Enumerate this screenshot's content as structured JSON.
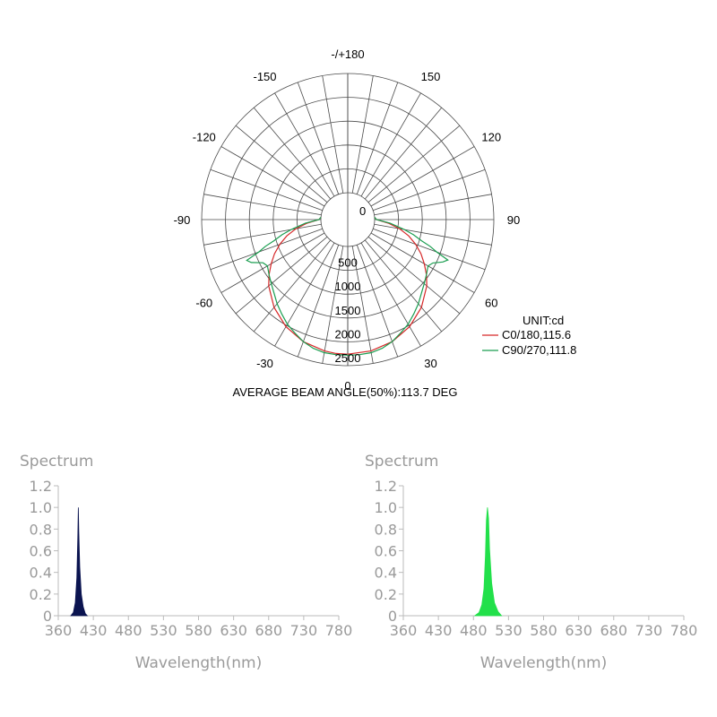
{
  "chart_data": [
    {
      "type": "polar",
      "unit": "UNIT:cd",
      "footer": "AVERAGE BEAM ANGLE(50%):113.7 DEG",
      "angle_labels": [
        {
          "angle": 180,
          "text": "-/+180"
        },
        {
          "angle": 150,
          "text": "150"
        },
        {
          "angle": 120,
          "text": "120"
        },
        {
          "angle": 90,
          "text": "90"
        },
        {
          "angle": 60,
          "text": "60"
        },
        {
          "angle": 30,
          "text": "30"
        },
        {
          "angle": 0,
          "text": "0"
        },
        {
          "angle": -30,
          "text": "-30"
        },
        {
          "angle": -60,
          "text": "-60"
        },
        {
          "angle": -90,
          "text": "-90"
        },
        {
          "angle": -120,
          "text": "-120"
        },
        {
          "angle": -150,
          "text": "-150"
        }
      ],
      "radial_ticks": [
        {
          "value": 0,
          "text": "0"
        },
        {
          "value": 500,
          "text": "500"
        },
        {
          "value": 1000,
          "text": "1000"
        },
        {
          "value": 1500,
          "text": "1500"
        },
        {
          "value": 2000,
          "text": "2000"
        },
        {
          "value": 2500,
          "text": "2500"
        }
      ],
      "rmax": 2500,
      "series": [
        {
          "name": "C0/180,115.6",
          "color": "#d62728",
          "points": [
            [
              0,
              2260
            ],
            [
              10,
              2235
            ],
            [
              20,
              2160
            ],
            [
              30,
              2030
            ],
            [
              40,
              1840
            ],
            [
              50,
              1600
            ],
            [
              55,
              1450
            ],
            [
              60,
              1290
            ],
            [
              65,
              1130
            ],
            [
              70,
              950
            ],
            [
              75,
              760
            ],
            [
              80,
              540
            ],
            [
              85,
              290
            ],
            [
              90,
              40
            ],
            [
              95,
              0
            ],
            [
              -5,
              2255
            ],
            [
              -10,
              2235
            ],
            [
              -20,
              2160
            ],
            [
              -30,
              2030
            ],
            [
              -40,
              1840
            ],
            [
              -50,
              1600
            ],
            [
              -55,
              1450
            ],
            [
              -60,
              1290
            ],
            [
              -65,
              1130
            ],
            [
              -70,
              950
            ],
            [
              -75,
              760
            ],
            [
              -80,
              540
            ],
            [
              -85,
              290
            ],
            [
              -90,
              40
            ],
            [
              -95,
              0
            ]
          ]
        },
        {
          "name": "C90/270,111.8",
          "color": "#1a9e50",
          "points": [
            [
              0,
              2280
            ],
            [
              5,
              2280
            ],
            [
              10,
              2270
            ],
            [
              15,
              2230
            ],
            [
              20,
              2160
            ],
            [
              25,
              2060
            ],
            [
              30,
              1970
            ],
            [
              35,
              1850
            ],
            [
              40,
              1740
            ],
            [
              45,
              1620
            ],
            [
              50,
              1530
            ],
            [
              55,
              1450
            ],
            [
              60,
              1380
            ],
            [
              63,
              1440
            ],
            [
              66,
              1620
            ],
            [
              68,
              1700
            ],
            [
              70,
              1420
            ],
            [
              72,
              1250
            ],
            [
              74,
              1050
            ],
            [
              77,
              850
            ],
            [
              80,
              640
            ],
            [
              85,
              330
            ],
            [
              90,
              40
            ],
            [
              95,
              0
            ],
            [
              -5,
              2280
            ],
            [
              -10,
              2270
            ],
            [
              -15,
              2230
            ],
            [
              -20,
              2160
            ],
            [
              -25,
              2060
            ],
            [
              -30,
              1970
            ],
            [
              -35,
              1850
            ],
            [
              -40,
              1740
            ],
            [
              -45,
              1620
            ],
            [
              -50,
              1530
            ],
            [
              -55,
              1450
            ],
            [
              -60,
              1380
            ],
            [
              -63,
              1430
            ],
            [
              -66,
              1650
            ],
            [
              -68,
              1720
            ],
            [
              -70,
              1420
            ],
            [
              -72,
              1250
            ],
            [
              -74,
              1050
            ],
            [
              -77,
              850
            ],
            [
              -80,
              640
            ],
            [
              -85,
              330
            ],
            [
              -90,
              40
            ],
            [
              -95,
              0
            ]
          ]
        }
      ]
    },
    {
      "type": "area",
      "title": "Spectrum",
      "xlabel": "Wavelength(nm)",
      "xlim": [
        360,
        780
      ],
      "ylim": [
        0,
        1.2
      ],
      "xticks": [
        360,
        430,
        480,
        530,
        580,
        630,
        680,
        730,
        780
      ],
      "xtick_labels": [
        "360",
        "430",
        "480",
        "530",
        "580",
        "630",
        "680",
        "730",
        "780"
      ],
      "yticks": [
        0,
        0.2,
        0.4,
        0.6,
        0.8,
        1.0,
        1.2
      ],
      "ytick_labels": [
        "0",
        "0.2",
        "0.4",
        "0.6",
        "0.8",
        "1.0",
        "1.2"
      ],
      "series": [
        {
          "color": "#0b1450",
          "x": [
            385,
            390,
            394,
            397,
            399,
            400,
            401,
            403,
            406,
            410,
            414,
            418
          ],
          "y": [
            0,
            0.03,
            0.12,
            0.35,
            0.72,
            1.0,
            0.78,
            0.45,
            0.2,
            0.08,
            0.02,
            0
          ]
        }
      ]
    },
    {
      "type": "area",
      "title": "Spectrum",
      "xlabel": "Wavelength(nm)",
      "xlim": [
        360,
        780
      ],
      "ylim": [
        0,
        1.2
      ],
      "xticks": [
        360,
        430,
        480,
        530,
        580,
        630,
        680,
        730,
        780
      ],
      "xtick_labels": [
        "360",
        "430",
        "480",
        "530",
        "580",
        "630",
        "680",
        "730",
        "780"
      ],
      "yticks": [
        0,
        0.2,
        0.4,
        0.6,
        0.8,
        1.0,
        1.2
      ],
      "ytick_labels": [
        "0",
        "0.2",
        "0.4",
        "0.6",
        "0.8",
        "1.0",
        "1.2"
      ],
      "series": [
        {
          "color": "#22e04a",
          "x": [
            482,
            488,
            492,
            495,
            497,
            498.5,
            500,
            501.5,
            503,
            506,
            510,
            515,
            520
          ],
          "y": [
            0,
            0.03,
            0.1,
            0.25,
            0.55,
            0.88,
            1.0,
            0.9,
            0.62,
            0.3,
            0.12,
            0.04,
            0
          ]
        }
      ]
    }
  ]
}
